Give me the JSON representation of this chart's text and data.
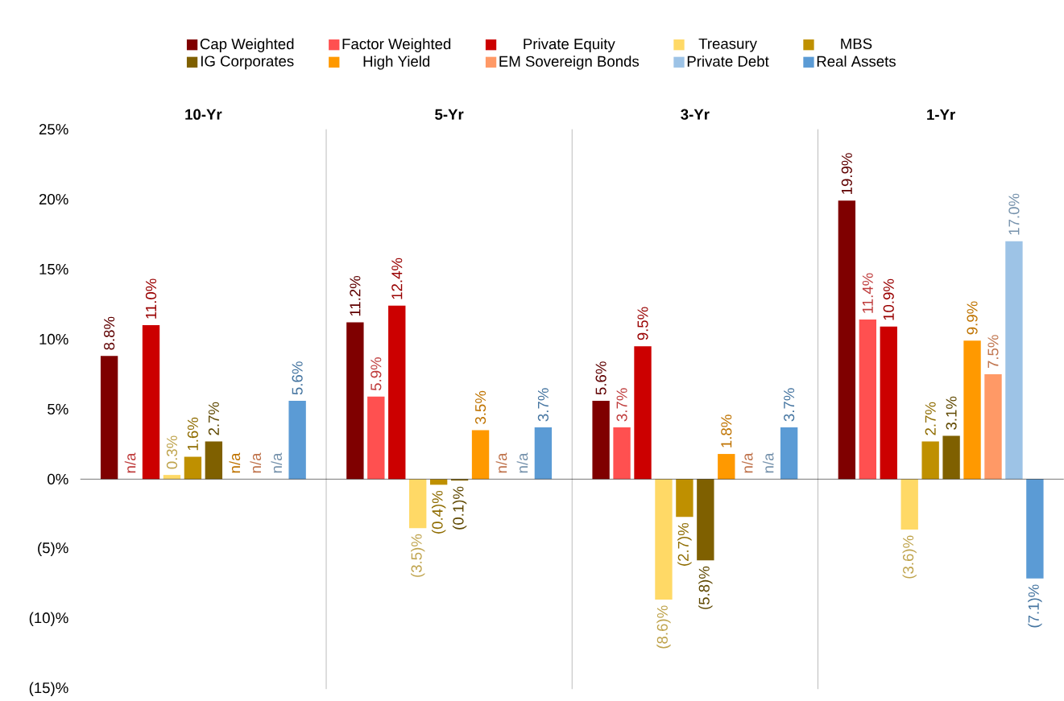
{
  "chart_data": {
    "type": "bar",
    "categories": [
      "10-Yr",
      "5-Yr",
      "3-Yr",
      "1-Yr"
    ],
    "ylim": [
      -15,
      25
    ],
    "yticks": [
      {
        "value": -15,
        "label": "(15)%"
      },
      {
        "value": -10,
        "label": "(10)%"
      },
      {
        "value": -5,
        "label": "(5)%"
      },
      {
        "value": 0,
        "label": "0%"
      },
      {
        "value": 5,
        "label": "5%"
      },
      {
        "value": 10,
        "label": "10%"
      },
      {
        "value": 15,
        "label": "15%"
      },
      {
        "value": 20,
        "label": "20%"
      },
      {
        "value": 25,
        "label": "25%"
      }
    ],
    "legend": "top",
    "series": [
      {
        "name": "Cap Weighted",
        "color": "#7f0000",
        "values": [
          8.8,
          11.2,
          5.6,
          19.9
        ],
        "value_labels": [
          "8.8%",
          "11.2%",
          "5.6%",
          "19.9%"
        ]
      },
      {
        "name": "Factor Weighted",
        "color": "#ff5050",
        "values": [
          null,
          5.9,
          3.7,
          11.4
        ],
        "value_labels": [
          "n/a",
          "5.9%",
          "3.7%",
          "11.4%"
        ]
      },
      {
        "name": "Private Equity",
        "color": "#cc0000",
        "values": [
          11.0,
          12.4,
          9.5,
          10.9
        ],
        "value_labels": [
          "11.0%",
          "12.4%",
          "9.5%",
          "10.9%"
        ]
      },
      {
        "name": "Treasury",
        "color": "#ffd966",
        "values": [
          0.3,
          -3.5,
          -8.6,
          -3.6
        ],
        "value_labels": [
          "0.3%",
          "(3.5)%",
          "(8.6)%",
          "(3.6)%"
        ]
      },
      {
        "name": "MBS",
        "color": "#bf9000",
        "values": [
          1.6,
          -0.4,
          -2.7,
          2.7
        ],
        "value_labels": [
          "1.6%",
          "(0.4)%",
          "(2.7)%",
          "2.7%"
        ]
      },
      {
        "name": "IG Corporates",
        "color": "#7f6000",
        "values": [
          2.7,
          -0.1,
          -5.8,
          3.1
        ],
        "value_labels": [
          "2.7%",
          "(0.1)%",
          "(5.8)%",
          "3.1%"
        ]
      },
      {
        "name": "High Yield",
        "color": "#ff9900",
        "values": [
          null,
          3.5,
          1.8,
          9.9
        ],
        "value_labels": [
          "n/a",
          "3.5%",
          "1.8%",
          "9.9%"
        ]
      },
      {
        "name": "EM Sovereign Bonds",
        "color": "#ff9966",
        "values": [
          null,
          null,
          null,
          7.5
        ],
        "value_labels": [
          "n/a",
          "n/a",
          "n/a",
          "7.5%"
        ]
      },
      {
        "name": "Private Debt",
        "color": "#9dc3e6",
        "values": [
          null,
          null,
          null,
          17.0
        ],
        "value_labels": [
          "n/a",
          "n/a",
          "n/a",
          "17.0%"
        ]
      },
      {
        "name": "Real Assets",
        "color": "#5b9bd5",
        "values": [
          5.6,
          3.7,
          3.7,
          -7.1
        ],
        "value_labels": [
          "5.6%",
          "3.7%",
          "3.7%",
          "(7.1)%"
        ]
      }
    ]
  }
}
